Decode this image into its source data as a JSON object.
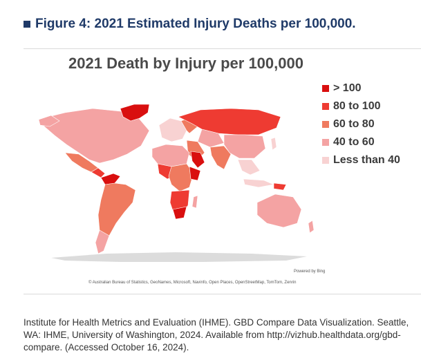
{
  "figure": {
    "heading": "Figure 4: 2021 Estimated Injury Deaths per 100,000."
  },
  "map": {
    "title": "2021 Death by Injury per 100,000",
    "powered_by": "Powered by Bing",
    "credits": "© Australian Bureau of Statistics, GeoNames, Microsoft, Navinfo, Open Places, OpenStreetMap, TomTom, Zenrin",
    "legend": [
      {
        "label": "> 100",
        "color": "#d90f0f"
      },
      {
        "label": "80 to 100",
        "color": "#ee3b32"
      },
      {
        "label": "60 to 80",
        "color": "#ef7a5f"
      },
      {
        "label": "40 to 60",
        "color": "#f4a3a3"
      },
      {
        "label": "Less than 40",
        "color": "#f8d2d2"
      }
    ],
    "antarctica_color": "#dcdcdc"
  },
  "citation": "Institute for Health Metrics and Evaluation (IHME). GBD Compare Data Visualization. Seattle, WA: IHME, University of Washington, 2024. Available from http://vizhub.healthdata.org/gbd-compare. (Accessed October 16, 2024)."
}
